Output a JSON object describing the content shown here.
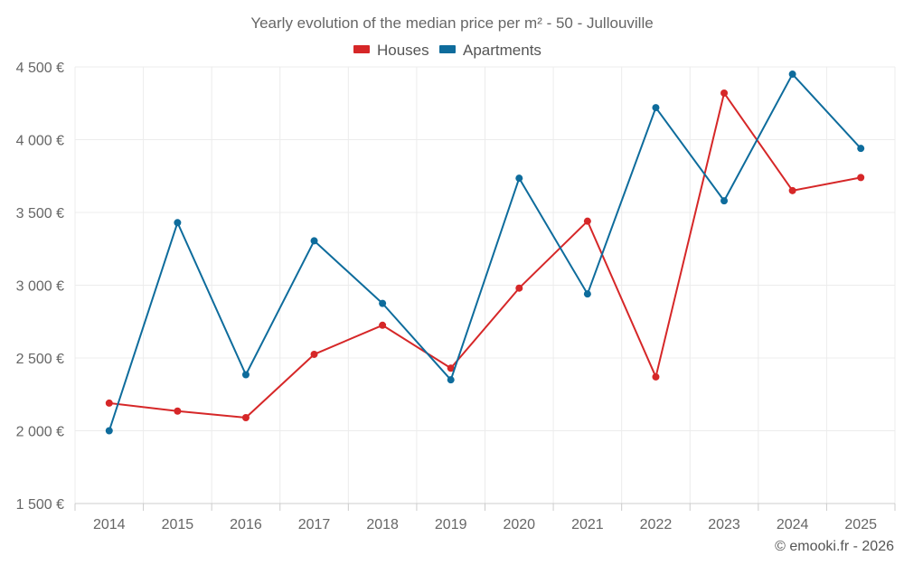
{
  "chart_data": {
    "type": "line",
    "title": "Yearly evolution of the median price per m² - 50 - Jullouville",
    "categories": [
      "2014",
      "2015",
      "2016",
      "2017",
      "2018",
      "2019",
      "2020",
      "2021",
      "2022",
      "2023",
      "2024",
      "2025"
    ],
    "series": [
      {
        "name": "Houses",
        "color": "#d62728",
        "values": [
          2190,
          2135,
          2090,
          2525,
          2725,
          2430,
          2980,
          3440,
          2370,
          4320,
          3650,
          3740
        ]
      },
      {
        "name": "Apartments",
        "color": "#0e6c9c",
        "values": [
          2000,
          3430,
          2385,
          3305,
          2875,
          2350,
          3735,
          2940,
          4220,
          3580,
          4450,
          3940
        ]
      }
    ],
    "ylim": [
      1500,
      4500
    ],
    "yticks": [
      1500,
      2000,
      2500,
      3000,
      3500,
      4000,
      4500
    ],
    "ytick_labels": [
      "1 500 €",
      "2 000 €",
      "2 500 €",
      "3 000 €",
      "3 500 €",
      "4 000 €",
      "4 500 €"
    ],
    "xlabel": "",
    "ylabel": "",
    "grid": true,
    "legend_position": "top-center"
  },
  "credit": "© emooki.fr - 2026"
}
